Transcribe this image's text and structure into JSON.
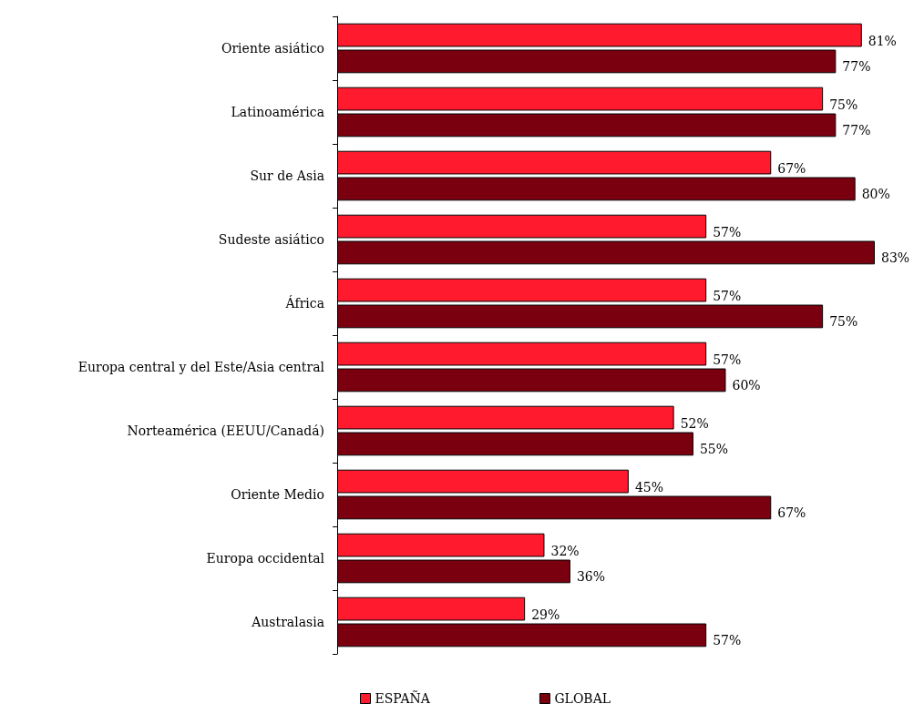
{
  "chart_data": {
    "type": "bar",
    "orientation": "horizontal",
    "legend": "bottom",
    "categories": [
      "Oriente asiático",
      "Latinoamérica",
      "Sur de Asia",
      "Sudeste asiático",
      "África",
      "Europa central y del Este/Asia central",
      "Norteamérica (EEUU/Canadá)",
      "Oriente Medio",
      "Europa occidental",
      "Australasia"
    ],
    "series": [
      {
        "name": "ESPAÑA",
        "color": "#ff1a2e",
        "values": [
          81,
          75,
          67,
          57,
          57,
          57,
          52,
          45,
          32,
          29
        ],
        "value_labels": [
          "81%",
          "75%",
          "67%",
          "57%",
          "57%",
          "57%",
          "52%",
          "45%",
          "32%",
          "29%"
        ]
      },
      {
        "name": "GLOBAL",
        "color": "#7a0010",
        "values": [
          77,
          77,
          80,
          83,
          75,
          60,
          55,
          67,
          36,
          57
        ],
        "value_labels": [
          "77%",
          "77%",
          "80%",
          "83%",
          "75%",
          "60%",
          "55%",
          "67%",
          "36%",
          "57%"
        ]
      }
    ]
  }
}
